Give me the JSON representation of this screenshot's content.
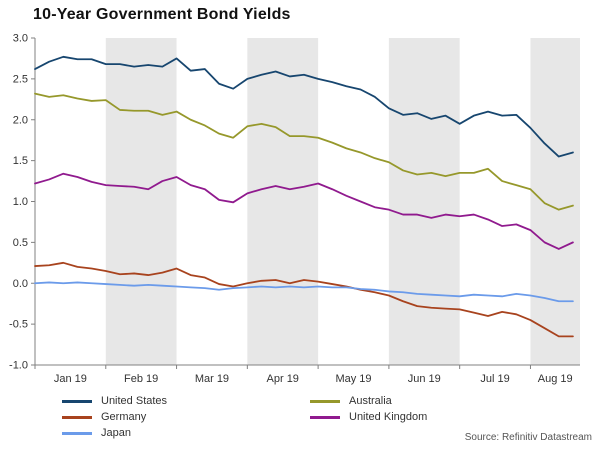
{
  "chart_data": {
    "type": "line",
    "title": "10-Year Government Bond Yields",
    "x_axis": {
      "categories": [
        "Jan 19",
        "Feb 19",
        "Mar 19",
        "Apr 19",
        "May 19",
        "Jun 19",
        "Jul 19",
        "Aug 19"
      ],
      "range": [
        0,
        7.7
      ]
    },
    "y_axis": {
      "tick_labels": [
        "3.0",
        "2.5",
        "2.0",
        "1.5",
        "1.0",
        "0.5",
        "0.0",
        "-0.5",
        "-1.0"
      ],
      "range": [
        -1.0,
        3.0
      ]
    },
    "shaded_months": [
      1,
      3,
      5,
      7
    ],
    "band_color": "#e7e7e7",
    "axis_color": "#808080",
    "grid": false,
    "legend_position": "bottom",
    "x": [
      0,
      0.2,
      0.4,
      0.6,
      0.8,
      1.0,
      1.2,
      1.4,
      1.6,
      1.8,
      2.0,
      2.2,
      2.4,
      2.6,
      2.8,
      3.0,
      3.2,
      3.4,
      3.6,
      3.8,
      4.0,
      4.2,
      4.4,
      4.6,
      4.8,
      5.0,
      5.2,
      5.4,
      5.6,
      5.8,
      6.0,
      6.2,
      6.4,
      6.6,
      6.8,
      7.0,
      7.2,
      7.4,
      7.6
    ],
    "series": [
      {
        "name": "United States",
        "color": "#17466f",
        "values": [
          2.62,
          2.71,
          2.77,
          2.74,
          2.74,
          2.68,
          2.68,
          2.65,
          2.67,
          2.65,
          2.75,
          2.6,
          2.62,
          2.44,
          2.38,
          2.5,
          2.55,
          2.59,
          2.53,
          2.55,
          2.5,
          2.46,
          2.41,
          2.37,
          2.28,
          2.14,
          2.06,
          2.08,
          2.01,
          2.05,
          1.95,
          2.05,
          2.1,
          2.05,
          2.06,
          1.9,
          1.71,
          1.55,
          1.6
        ]
      },
      {
        "name": "Australia",
        "color": "#96982b",
        "values": [
          2.32,
          2.28,
          2.3,
          2.26,
          2.23,
          2.24,
          2.12,
          2.11,
          2.11,
          2.06,
          2.1,
          2.0,
          1.93,
          1.83,
          1.78,
          1.92,
          1.95,
          1.91,
          1.8,
          1.8,
          1.78,
          1.72,
          1.65,
          1.6,
          1.53,
          1.48,
          1.38,
          1.33,
          1.35,
          1.31,
          1.35,
          1.35,
          1.4,
          1.25,
          1.2,
          1.15,
          0.98,
          0.9,
          0.95
        ]
      },
      {
        "name": "Germany",
        "color": "#a8431e",
        "values": [
          0.21,
          0.22,
          0.25,
          0.2,
          0.18,
          0.15,
          0.11,
          0.12,
          0.1,
          0.13,
          0.18,
          0.1,
          0.07,
          -0.01,
          -0.04,
          0.0,
          0.03,
          0.04,
          0.0,
          0.04,
          0.02,
          -0.01,
          -0.04,
          -0.08,
          -0.11,
          -0.15,
          -0.22,
          -0.28,
          -0.3,
          -0.31,
          -0.32,
          -0.36,
          -0.4,
          -0.35,
          -0.38,
          -0.45,
          -0.55,
          -0.65,
          -0.65
        ]
      },
      {
        "name": "United Kingdom",
        "color": "#901a8e",
        "values": [
          1.22,
          1.27,
          1.34,
          1.3,
          1.24,
          1.2,
          1.19,
          1.18,
          1.15,
          1.25,
          1.3,
          1.2,
          1.15,
          1.02,
          0.99,
          1.1,
          1.15,
          1.19,
          1.15,
          1.18,
          1.22,
          1.15,
          1.07,
          1.0,
          0.93,
          0.9,
          0.84,
          0.84,
          0.8,
          0.84,
          0.82,
          0.84,
          0.78,
          0.7,
          0.72,
          0.65,
          0.5,
          0.42,
          0.5
        ]
      },
      {
        "name": "Japan",
        "color": "#6b9bea",
        "values": [
          0.0,
          0.01,
          0.0,
          0.01,
          0.0,
          -0.01,
          -0.02,
          -0.03,
          -0.02,
          -0.03,
          -0.04,
          -0.05,
          -0.06,
          -0.08,
          -0.06,
          -0.05,
          -0.04,
          -0.05,
          -0.04,
          -0.05,
          -0.04,
          -0.05,
          -0.05,
          -0.07,
          -0.08,
          -0.1,
          -0.11,
          -0.13,
          -0.14,
          -0.15,
          -0.16,
          -0.14,
          -0.15,
          -0.16,
          -0.13,
          -0.15,
          -0.18,
          -0.22,
          -0.22
        ]
      }
    ],
    "legend_columns": [
      [
        "United States",
        "Germany",
        "Japan"
      ],
      [
        "Australia",
        "United Kingdom"
      ]
    ]
  },
  "source": "Source: Refinitiv Datastream"
}
